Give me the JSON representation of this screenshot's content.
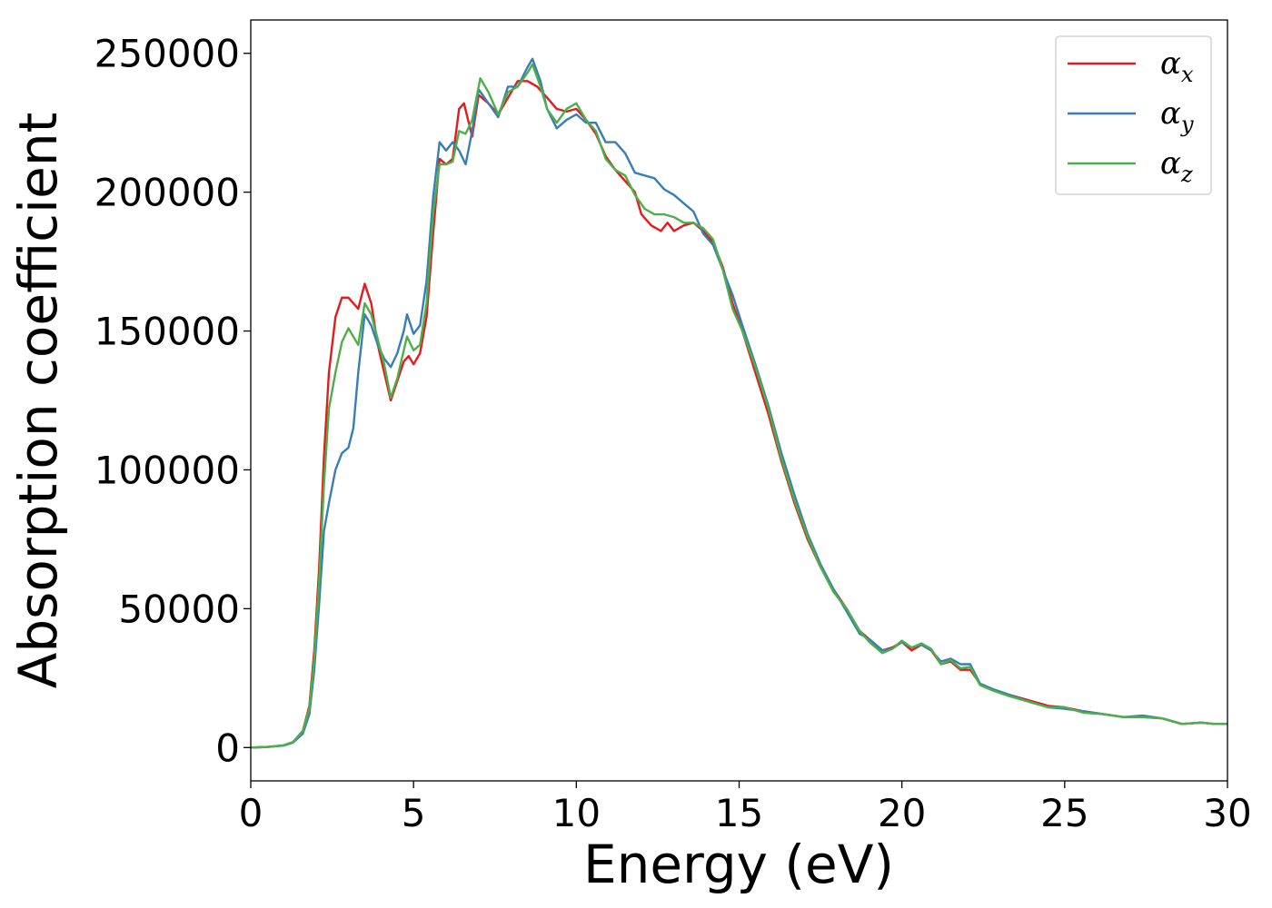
{
  "chart_data": {
    "type": "line",
    "xlabel": "Energy (eV)",
    "ylabel": "Absorption coefficient",
    "xlim": [
      0,
      30
    ],
    "ylim": [
      -12000,
      262000
    ],
    "xticks": [
      0,
      5,
      10,
      15,
      20,
      25,
      30
    ],
    "yticks": [
      0,
      50000,
      100000,
      150000,
      200000,
      250000
    ],
    "grid": false,
    "legend_position": "top-right",
    "series": [
      {
        "name": "α",
        "name_subscript": "x",
        "color": "#e41a1c",
        "points": [
          [
            0,
            0
          ],
          [
            0.5,
            200
          ],
          [
            1.0,
            800
          ],
          [
            1.3,
            2000
          ],
          [
            1.6,
            6000
          ],
          [
            1.8,
            15000
          ],
          [
            1.95,
            35000
          ],
          [
            2.1,
            65000
          ],
          [
            2.25,
            105000
          ],
          [
            2.4,
            135000
          ],
          [
            2.6,
            155000
          ],
          [
            2.8,
            162000
          ],
          [
            3.0,
            162000
          ],
          [
            3.15,
            160000
          ],
          [
            3.3,
            158000
          ],
          [
            3.5,
            167000
          ],
          [
            3.7,
            160000
          ],
          [
            3.9,
            145000
          ],
          [
            4.1,
            135000
          ],
          [
            4.3,
            125000
          ],
          [
            4.5,
            132000
          ],
          [
            4.7,
            139000
          ],
          [
            4.85,
            141000
          ],
          [
            5.0,
            138000
          ],
          [
            5.2,
            142000
          ],
          [
            5.4,
            155000
          ],
          [
            5.6,
            185000
          ],
          [
            5.8,
            212000
          ],
          [
            6.0,
            210000
          ],
          [
            6.2,
            212000
          ],
          [
            6.4,
            230000
          ],
          [
            6.55,
            232000
          ],
          [
            6.8,
            220000
          ],
          [
            7.0,
            235000
          ],
          [
            7.3,
            232000
          ],
          [
            7.6,
            228000
          ],
          [
            7.9,
            234000
          ],
          [
            8.2,
            240000
          ],
          [
            8.5,
            240000
          ],
          [
            8.8,
            238000
          ],
          [
            9.1,
            234000
          ],
          [
            9.4,
            230000
          ],
          [
            9.7,
            229000
          ],
          [
            10.0,
            230000
          ],
          [
            10.3,
            226000
          ],
          [
            10.6,
            221000
          ],
          [
            10.9,
            213000
          ],
          [
            11.2,
            208000
          ],
          [
            11.5,
            204000
          ],
          [
            11.8,
            200000
          ],
          [
            12.0,
            192000
          ],
          [
            12.3,
            188000
          ],
          [
            12.6,
            186000
          ],
          [
            12.8,
            189000
          ],
          [
            13.0,
            186000
          ],
          [
            13.3,
            188000
          ],
          [
            13.6,
            189000
          ],
          [
            13.9,
            186000
          ],
          [
            14.2,
            182000
          ],
          [
            14.5,
            173000
          ],
          [
            14.8,
            160000
          ],
          [
            15.1,
            150000
          ],
          [
            15.5,
            135000
          ],
          [
            15.9,
            120000
          ],
          [
            16.3,
            103000
          ],
          [
            16.7,
            88000
          ],
          [
            17.1,
            75000
          ],
          [
            17.5,
            65000
          ],
          [
            17.9,
            57000
          ],
          [
            18.3,
            50000
          ],
          [
            18.7,
            42000
          ],
          [
            19.0,
            39000
          ],
          [
            19.4,
            35000
          ],
          [
            19.7,
            36000
          ],
          [
            20.0,
            38000
          ],
          [
            20.3,
            35000
          ],
          [
            20.6,
            37000
          ],
          [
            20.9,
            35000
          ],
          [
            21.2,
            30000
          ],
          [
            21.5,
            31000
          ],
          [
            21.8,
            28000
          ],
          [
            22.1,
            28000
          ],
          [
            22.4,
            23000
          ],
          [
            22.8,
            21000
          ],
          [
            23.3,
            19000
          ],
          [
            23.9,
            17000
          ],
          [
            24.5,
            15000
          ],
          [
            25.0,
            14500
          ],
          [
            25.6,
            13000
          ],
          [
            26.2,
            12000
          ],
          [
            26.8,
            11000
          ],
          [
            27.4,
            11000
          ],
          [
            28.0,
            10500
          ],
          [
            28.6,
            8500
          ],
          [
            29.2,
            9000
          ],
          [
            29.6,
            8500
          ],
          [
            30.0,
            8500
          ]
        ]
      },
      {
        "name": "α",
        "name_subscript": "y",
        "color": "#377eb8",
        "points": [
          [
            0,
            0
          ],
          [
            0.5,
            200
          ],
          [
            1.0,
            700
          ],
          [
            1.3,
            1800
          ],
          [
            1.6,
            5000
          ],
          [
            1.8,
            12000
          ],
          [
            1.95,
            28000
          ],
          [
            2.1,
            52000
          ],
          [
            2.25,
            78000
          ],
          [
            2.4,
            88000
          ],
          [
            2.6,
            100000
          ],
          [
            2.8,
            106000
          ],
          [
            3.0,
            108000
          ],
          [
            3.15,
            115000
          ],
          [
            3.3,
            135000
          ],
          [
            3.5,
            156000
          ],
          [
            3.7,
            152000
          ],
          [
            3.9,
            145000
          ],
          [
            4.1,
            140000
          ],
          [
            4.3,
            137000
          ],
          [
            4.5,
            142000
          ],
          [
            4.7,
            150000
          ],
          [
            4.8,
            156000
          ],
          [
            5.0,
            149000
          ],
          [
            5.2,
            152000
          ],
          [
            5.4,
            168000
          ],
          [
            5.6,
            198000
          ],
          [
            5.8,
            218000
          ],
          [
            6.0,
            215000
          ],
          [
            6.2,
            218000
          ],
          [
            6.4,
            215000
          ],
          [
            6.6,
            210000
          ],
          [
            6.8,
            222000
          ],
          [
            7.0,
            237000
          ],
          [
            7.3,
            232000
          ],
          [
            7.6,
            227000
          ],
          [
            7.9,
            238000
          ],
          [
            8.2,
            238000
          ],
          [
            8.5,
            245000
          ],
          [
            8.65,
            248000
          ],
          [
            8.9,
            240000
          ],
          [
            9.1,
            230000
          ],
          [
            9.4,
            223000
          ],
          [
            9.7,
            226000
          ],
          [
            10.0,
            228000
          ],
          [
            10.3,
            225000
          ],
          [
            10.6,
            225000
          ],
          [
            10.9,
            218000
          ],
          [
            11.2,
            218000
          ],
          [
            11.5,
            214000
          ],
          [
            11.8,
            207000
          ],
          [
            12.1,
            206000
          ],
          [
            12.4,
            205000
          ],
          [
            12.7,
            201000
          ],
          [
            13.0,
            199000
          ],
          [
            13.3,
            196000
          ],
          [
            13.6,
            193000
          ],
          [
            13.9,
            185000
          ],
          [
            14.2,
            181000
          ],
          [
            14.5,
            172000
          ],
          [
            14.8,
            163000
          ],
          [
            15.1,
            152000
          ],
          [
            15.5,
            138000
          ],
          [
            15.9,
            123000
          ],
          [
            16.3,
            106000
          ],
          [
            16.7,
            91000
          ],
          [
            17.1,
            77000
          ],
          [
            17.5,
            66000
          ],
          [
            17.9,
            57000
          ],
          [
            18.3,
            49000
          ],
          [
            18.7,
            41000
          ],
          [
            19.0,
            39000
          ],
          [
            19.4,
            35000
          ],
          [
            19.7,
            35500
          ],
          [
            20.0,
            38000
          ],
          [
            20.3,
            36000
          ],
          [
            20.6,
            37000
          ],
          [
            20.9,
            35000
          ],
          [
            21.2,
            31000
          ],
          [
            21.5,
            32000
          ],
          [
            21.8,
            30000
          ],
          [
            22.1,
            30000
          ],
          [
            22.4,
            23000
          ],
          [
            22.8,
            21000
          ],
          [
            23.3,
            19000
          ],
          [
            23.9,
            16500
          ],
          [
            24.5,
            14500
          ],
          [
            25.0,
            14000
          ],
          [
            25.6,
            13000
          ],
          [
            26.2,
            12000
          ],
          [
            26.8,
            11000
          ],
          [
            27.4,
            11500
          ],
          [
            28.0,
            10500
          ],
          [
            28.6,
            8500
          ],
          [
            29.2,
            9000
          ],
          [
            29.6,
            8500
          ],
          [
            30.0,
            8500
          ]
        ]
      },
      {
        "name": "α",
        "name_subscript": "z",
        "color": "#4daf4a",
        "points": [
          [
            0,
            0
          ],
          [
            0.5,
            200
          ],
          [
            1.0,
            800
          ],
          [
            1.3,
            2000
          ],
          [
            1.6,
            6000
          ],
          [
            1.8,
            14000
          ],
          [
            1.95,
            32000
          ],
          [
            2.1,
            60000
          ],
          [
            2.25,
            95000
          ],
          [
            2.4,
            122000
          ],
          [
            2.6,
            135000
          ],
          [
            2.8,
            146000
          ],
          [
            3.0,
            151000
          ],
          [
            3.15,
            148000
          ],
          [
            3.3,
            145000
          ],
          [
            3.5,
            160000
          ],
          [
            3.7,
            156000
          ],
          [
            3.9,
            147000
          ],
          [
            4.1,
            138000
          ],
          [
            4.3,
            126000
          ],
          [
            4.5,
            133000
          ],
          [
            4.7,
            143000
          ],
          [
            4.8,
            148000
          ],
          [
            5.0,
            143000
          ],
          [
            5.2,
            145000
          ],
          [
            5.4,
            160000
          ],
          [
            5.6,
            192000
          ],
          [
            5.8,
            210000
          ],
          [
            6.0,
            210000
          ],
          [
            6.2,
            211000
          ],
          [
            6.4,
            222000
          ],
          [
            6.6,
            221000
          ],
          [
            6.8,
            226000
          ],
          [
            7.05,
            241000
          ],
          [
            7.3,
            236000
          ],
          [
            7.6,
            228000
          ],
          [
            7.9,
            236000
          ],
          [
            8.2,
            238000
          ],
          [
            8.5,
            243000
          ],
          [
            8.65,
            246000
          ],
          [
            8.9,
            238000
          ],
          [
            9.1,
            230000
          ],
          [
            9.4,
            225000
          ],
          [
            9.7,
            230000
          ],
          [
            10.0,
            232000
          ],
          [
            10.3,
            226000
          ],
          [
            10.6,
            222000
          ],
          [
            10.9,
            212000
          ],
          [
            11.2,
            208000
          ],
          [
            11.5,
            206000
          ],
          [
            11.8,
            199000
          ],
          [
            12.1,
            194000
          ],
          [
            12.4,
            192000
          ],
          [
            12.7,
            192000
          ],
          [
            13.0,
            191000
          ],
          [
            13.3,
            189000
          ],
          [
            13.6,
            189000
          ],
          [
            13.9,
            187000
          ],
          [
            14.2,
            183000
          ],
          [
            14.5,
            172000
          ],
          [
            14.8,
            158000
          ],
          [
            15.1,
            150000
          ],
          [
            15.5,
            137000
          ],
          [
            15.9,
            122000
          ],
          [
            16.3,
            104000
          ],
          [
            16.7,
            89000
          ],
          [
            17.1,
            76000
          ],
          [
            17.5,
            65000
          ],
          [
            17.9,
            56000
          ],
          [
            18.3,
            50000
          ],
          [
            18.7,
            42000
          ],
          [
            19.0,
            38000
          ],
          [
            19.4,
            34000
          ],
          [
            19.7,
            35500
          ],
          [
            20.0,
            38500
          ],
          [
            20.3,
            36000
          ],
          [
            20.6,
            37500
          ],
          [
            20.9,
            35500
          ],
          [
            21.2,
            30000
          ],
          [
            21.5,
            31500
          ],
          [
            21.8,
            28500
          ],
          [
            22.1,
            29000
          ],
          [
            22.4,
            22500
          ],
          [
            22.8,
            20500
          ],
          [
            23.3,
            18500
          ],
          [
            23.9,
            16500
          ],
          [
            24.5,
            14500
          ],
          [
            25.0,
            14500
          ],
          [
            25.6,
            12500
          ],
          [
            26.2,
            12000
          ],
          [
            26.8,
            11000
          ],
          [
            27.4,
            11000
          ],
          [
            28.0,
            10500
          ],
          [
            28.6,
            8500
          ],
          [
            29.2,
            9000
          ],
          [
            29.6,
            8500
          ],
          [
            30.0,
            8500
          ]
        ]
      }
    ]
  }
}
